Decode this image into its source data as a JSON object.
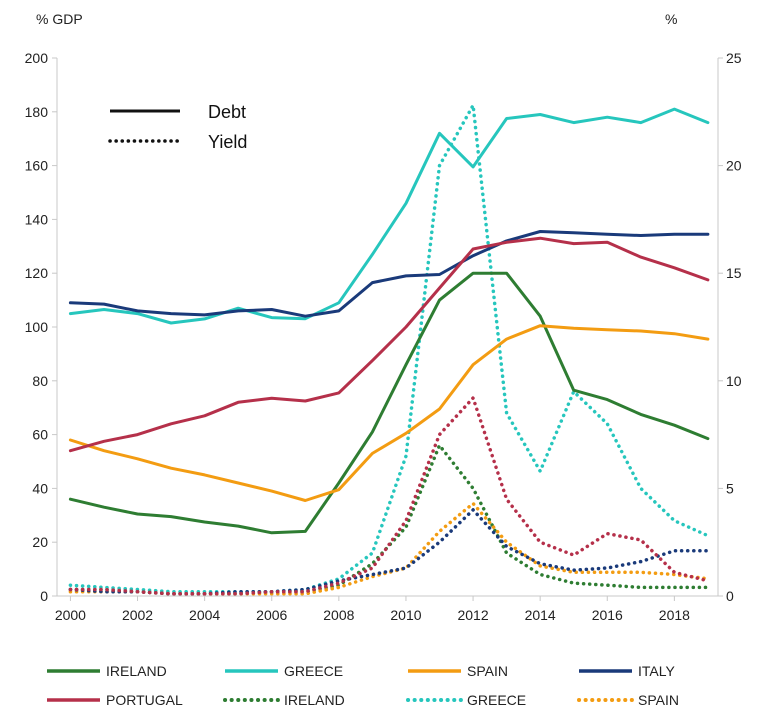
{
  "chart_data": {
    "type": "line",
    "left_axis_unit": "% GDP",
    "right_axis_unit": "%",
    "x": [
      2000,
      2001,
      2002,
      2003,
      2004,
      2005,
      2006,
      2007,
      2008,
      2009,
      2010,
      2011,
      2012,
      2013,
      2014,
      2015,
      2016,
      2017,
      2018,
      2019
    ],
    "x_ticks": [
      "2000",
      "2002",
      "2004",
      "2006",
      "2008",
      "2010",
      "2012",
      "2014",
      "2016",
      "2018"
    ],
    "x_tick_values": [
      2000,
      2002,
      2004,
      2006,
      2008,
      2010,
      2012,
      2014,
      2016,
      2018
    ],
    "xlim": [
      1999.6,
      2019.3
    ],
    "ylim_left": [
      0,
      200
    ],
    "left_ticks": [
      "0",
      "20",
      "40",
      "60",
      "80",
      "100",
      "120",
      "140",
      "160",
      "180",
      "200"
    ],
    "left_tick_values": [
      0,
      20,
      40,
      60,
      80,
      100,
      120,
      140,
      160,
      180,
      200
    ],
    "ylim_right": [
      0,
      25
    ],
    "right_ticks": [
      "0",
      "5",
      "10",
      "15",
      "20",
      "25"
    ],
    "right_tick_values": [
      0,
      5,
      10,
      15,
      20,
      25
    ],
    "grid": false,
    "style_key": [
      {
        "label": "Debt",
        "dash": "solid"
      },
      {
        "label": "Yield",
        "dash": "dotted"
      }
    ],
    "debt_series": [
      {
        "name": "IRELAND",
        "color": "#2e7d32",
        "values": [
          36,
          33,
          30.5,
          29.5,
          27.5,
          26,
          23.5,
          24,
          42,
          61,
          86,
          110,
          120,
          120,
          104,
          76.5,
          73,
          67.5,
          63.5,
          58.5
        ]
      },
      {
        "name": "GREECE",
        "color": "#26c6bd",
        "values": [
          105,
          106.5,
          105,
          101.5,
          103,
          107,
          103.5,
          103.1,
          109,
          127,
          146,
          172,
          159.5,
          177.5,
          179,
          176,
          178,
          176,
          181,
          176
        ]
      },
      {
        "name": "SPAIN",
        "color": "#f39c12",
        "values": [
          58,
          54,
          51,
          47.5,
          45,
          42,
          39,
          35.5,
          39.5,
          53,
          60.5,
          69.5,
          86,
          95.5,
          100.5,
          99.5,
          99,
          98.5,
          97.5,
          95.5
        ]
      },
      {
        "name": "ITALY",
        "color": "#1a3a7a",
        "values": [
          109,
          108.5,
          106,
          105,
          104.5,
          106,
          106.5,
          104,
          106,
          116.5,
          119,
          119.5,
          126.5,
          132,
          135.5,
          135,
          134.5,
          134,
          134.5,
          134.5
        ]
      },
      {
        "name": "PORTUGAL",
        "color": "#b5304a",
        "values": [
          54,
          57.5,
          60,
          64,
          67,
          72,
          73.5,
          72.5,
          75.5,
          87.5,
          100,
          114.5,
          129,
          131.5,
          133,
          131,
          131.5,
          126,
          122,
          117.5
        ]
      }
    ],
    "yield_series": [
      {
        "name": "IRELAND",
        "color": "#2e7d32",
        "values": [
          0.3,
          0.3,
          0.2,
          0.1,
          0.1,
          0.1,
          0.2,
          0.2,
          0.5,
          1.5,
          3.2,
          7.0,
          5.0,
          2.0,
          1.0,
          0.6,
          0.5,
          0.4,
          0.4,
          0.4
        ]
      },
      {
        "name": "GREECE",
        "color": "#26c6bd",
        "values": [
          0.5,
          0.4,
          0.3,
          0.2,
          0.2,
          0.2,
          0.2,
          0.3,
          0.8,
          2.0,
          6.5,
          20.0,
          22.8,
          8.5,
          5.8,
          9.5,
          8.0,
          5.0,
          3.5,
          2.8
        ]
      },
      {
        "name": "SPAIN",
        "color": "#f39c12",
        "values": [
          0.2,
          0.2,
          0.2,
          0.1,
          0.1,
          0.1,
          0.1,
          0.1,
          0.4,
          0.9,
          1.3,
          3.0,
          4.3,
          2.5,
          1.4,
          1.1,
          1.1,
          1.1,
          1.0,
          0.8
        ]
      },
      {
        "name": "ITALY",
        "color": "#1a3a7a",
        "values": [
          0.3,
          0.2,
          0.2,
          0.1,
          0.1,
          0.2,
          0.2,
          0.3,
          0.7,
          1.0,
          1.3,
          2.5,
          4.0,
          2.3,
          1.5,
          1.2,
          1.3,
          1.6,
          2.1,
          2.1
        ]
      },
      {
        "name": "PORTUGAL",
        "color": "#b5304a",
        "values": [
          0.3,
          0.3,
          0.2,
          0.1,
          0.1,
          0.1,
          0.2,
          0.2,
          0.6,
          1.3,
          3.5,
          7.5,
          9.2,
          4.5,
          2.5,
          1.9,
          2.9,
          2.6,
          1.1,
          0.7
        ]
      }
    ]
  },
  "legend": {
    "row1": [
      {
        "label": "IRELAND",
        "color": "#2e7d32",
        "dash": "solid"
      },
      {
        "label": "GREECE",
        "color": "#26c6bd",
        "dash": "solid"
      },
      {
        "label": "SPAIN",
        "color": "#f39c12",
        "dash": "solid"
      },
      {
        "label": "ITALY",
        "color": "#1a3a7a",
        "dash": "solid"
      }
    ],
    "row2": [
      {
        "label": "PORTUGAL",
        "color": "#b5304a",
        "dash": "solid"
      },
      {
        "label": "IRELAND",
        "color": "#2e7d32",
        "dash": "dotted"
      },
      {
        "label": "GREECE",
        "color": "#26c6bd",
        "dash": "dotted"
      },
      {
        "label": "SPAIN",
        "color": "#f39c12",
        "dash": "dotted"
      }
    ]
  }
}
